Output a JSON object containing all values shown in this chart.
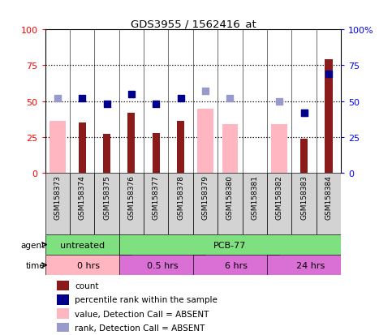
{
  "title": "GDS3955 / 1562416_at",
  "samples": [
    "GSM158373",
    "GSM158374",
    "GSM158375",
    "GSM158376",
    "GSM158377",
    "GSM158378",
    "GSM158379",
    "GSM158380",
    "GSM158381",
    "GSM158382",
    "GSM158383",
    "GSM158384"
  ],
  "count_values": [
    null,
    35,
    27,
    42,
    28,
    36,
    null,
    null,
    null,
    null,
    24,
    79
  ],
  "percentile_rank": [
    null,
    52,
    48,
    55,
    48,
    52,
    null,
    null,
    null,
    null,
    42,
    69
  ],
  "value_absent": [
    36,
    null,
    null,
    null,
    null,
    null,
    45,
    34,
    null,
    34,
    null,
    null
  ],
  "rank_absent": [
    52,
    null,
    null,
    null,
    null,
    null,
    57,
    52,
    null,
    50,
    42,
    null
  ],
  "yticks": [
    0,
    25,
    50,
    75,
    100
  ],
  "bar_color_dark": "#8B1A1A",
  "bar_color_light": "#FFB6C1",
  "dot_color_dark": "#00008B",
  "dot_color_light": "#9999CC",
  "background_color": "#D3D3D3",
  "agent_untreated_color": "#7FE07F",
  "agent_pcb_color": "#7FE07F",
  "time_0_color": "#FFB6C1",
  "time_other_color": "#DA70D6",
  "legend_items": [
    {
      "label": "count",
      "color": "#8B1A1A"
    },
    {
      "label": "percentile rank within the sample",
      "color": "#00008B"
    },
    {
      "label": "value, Detection Call = ABSENT",
      "color": "#FFB6C1"
    },
    {
      "label": "rank, Detection Call = ABSENT",
      "color": "#9999CC"
    }
  ]
}
